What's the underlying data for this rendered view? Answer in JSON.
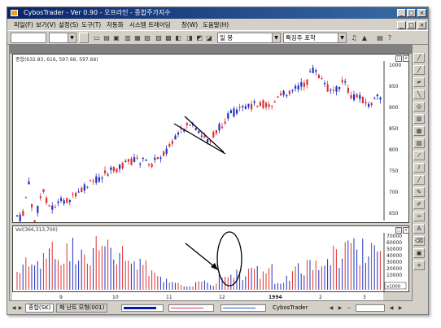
{
  "window": {
    "title": "CybosTrader - Ver 0.90 - 오프라인 - 종합주가지수",
    "controls": [
      "_",
      "□",
      "×"
    ]
  },
  "menu": {
    "items": [
      "파일(F)",
      "보기(V)",
      "설정(S)",
      "도구(T)",
      "자동화",
      "시스템 트레이딩",
      "창(W)",
      "도움말(H)"
    ],
    "inner_controls": [
      "_",
      "□",
      "×"
    ]
  },
  "toolbar": {
    "code_value": "",
    "period_value": "",
    "indicator_combo": "일 봉",
    "special_combo": "특징주 포착"
  },
  "price_panel": {
    "header": "종합(632.83, 616, 597.66, 597.66)",
    "y_ticks": [
      "1000",
      "950",
      "900",
      "850",
      "800",
      "750",
      "700",
      "650"
    ]
  },
  "volume_panel": {
    "header": "Vol(366,313,700)",
    "y_ticks": [
      "70000",
      "60000",
      "50000",
      "40000",
      "30000",
      "20000",
      "10000"
    ],
    "unit_label": "x1000"
  },
  "x_axis": {
    "ticks": [
      "9",
      "10",
      "11",
      "12",
      "1994",
      "2",
      "3"
    ]
  },
  "statusbar": {
    "tab1": "종합(SK)",
    "tab2": "패 난트 모형(001)",
    "app_label": "CybosTrader"
  },
  "colors": {
    "up": "#e03030",
    "down": "#2030c0",
    "titlebar": "#0a246a",
    "frame": "#d4d0c8"
  },
  "side_tools": [
    "line-tool",
    "trend-tool",
    "channel-tool",
    "fibo-tool",
    "cycle-tool",
    "grid-tool",
    "gann-tool",
    "arc-tool",
    "fan-tool",
    "pitchfork-tool",
    "ruler-tool",
    "pencil-tool",
    "brush-tool",
    "text-tool",
    "delete-tool",
    "plus-tool"
  ]
}
